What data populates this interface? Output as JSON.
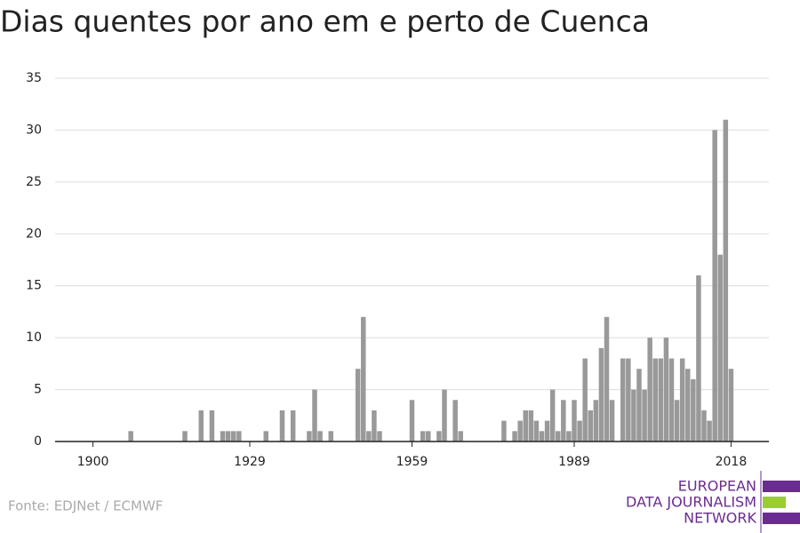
{
  "chart_data": {
    "type": "bar",
    "title": "Dias quentes por ano em e perto de Cuenca",
    "source": "Fonte: EDJNet / ECMWF",
    "logo": [
      "EUROPEAN",
      "DATA JOURNALISM",
      "NETWORK"
    ],
    "color": "#999999",
    "x": [
      1900,
      1901,
      1902,
      1903,
      1904,
      1905,
      1906,
      1907,
      1908,
      1909,
      1910,
      1911,
      1912,
      1913,
      1914,
      1915,
      1916,
      1917,
      1918,
      1919,
      1920,
      1921,
      1922,
      1923,
      1924,
      1925,
      1926,
      1927,
      1928,
      1929,
      1930,
      1931,
      1932,
      1933,
      1934,
      1935,
      1936,
      1937,
      1938,
      1939,
      1940,
      1941,
      1942,
      1943,
      1944,
      1945,
      1946,
      1947,
      1948,
      1949,
      1950,
      1951,
      1952,
      1953,
      1954,
      1955,
      1956,
      1957,
      1958,
      1959,
      1960,
      1961,
      1962,
      1963,
      1964,
      1965,
      1966,
      1967,
      1968,
      1969,
      1970,
      1971,
      1972,
      1973,
      1974,
      1975,
      1976,
      1977,
      1978,
      1979,
      1980,
      1981,
      1982,
      1983,
      1984,
      1985,
      1986,
      1987,
      1988,
      1989,
      1990,
      1991,
      1992,
      1993,
      1994,
      1995,
      1996,
      1997,
      1998,
      1999,
      2000,
      2001,
      2002,
      2003,
      2004,
      2005,
      2006,
      2007,
      2008,
      2009,
      2010,
      2011,
      2012,
      2013,
      2014,
      2015,
      2016,
      2017,
      2018
    ],
    "values": [
      0,
      0,
      0,
      0,
      0,
      0,
      0,
      1,
      0,
      0,
      0,
      0,
      0,
      0,
      0,
      0,
      0,
      1,
      0,
      0,
      3,
      0,
      3,
      0,
      1,
      1,
      1,
      1,
      0,
      0,
      0,
      0,
      1,
      0,
      0,
      3,
      0,
      3,
      0,
      0,
      1,
      5,
      1,
      0,
      1,
      0,
      0,
      0,
      0,
      7,
      12,
      1,
      3,
      1,
      0,
      0,
      0,
      0,
      0,
      4,
      0,
      1,
      1,
      0,
      1,
      5,
      0,
      4,
      1,
      0,
      0,
      0,
      0,
      0,
      0,
      0,
      2,
      0,
      1,
      2,
      3,
      3,
      2,
      1,
      2,
      5,
      1,
      4,
      1,
      4,
      2,
      8,
      3,
      4,
      9,
      12,
      4,
      0,
      8,
      8,
      5,
      7,
      5,
      10,
      8,
      8,
      10,
      8,
      4,
      8,
      7,
      6,
      16,
      3,
      2,
      30,
      18,
      31,
      7
    ],
    "xlim": [
      1893,
      2025
    ],
    "xticks": [
      1900,
      1929,
      1959,
      1989,
      2018
    ],
    "ylim": [
      0,
      35
    ],
    "yticks": [
      0,
      5,
      10,
      15,
      20,
      25,
      30,
      35
    ],
    "grid": true
  }
}
